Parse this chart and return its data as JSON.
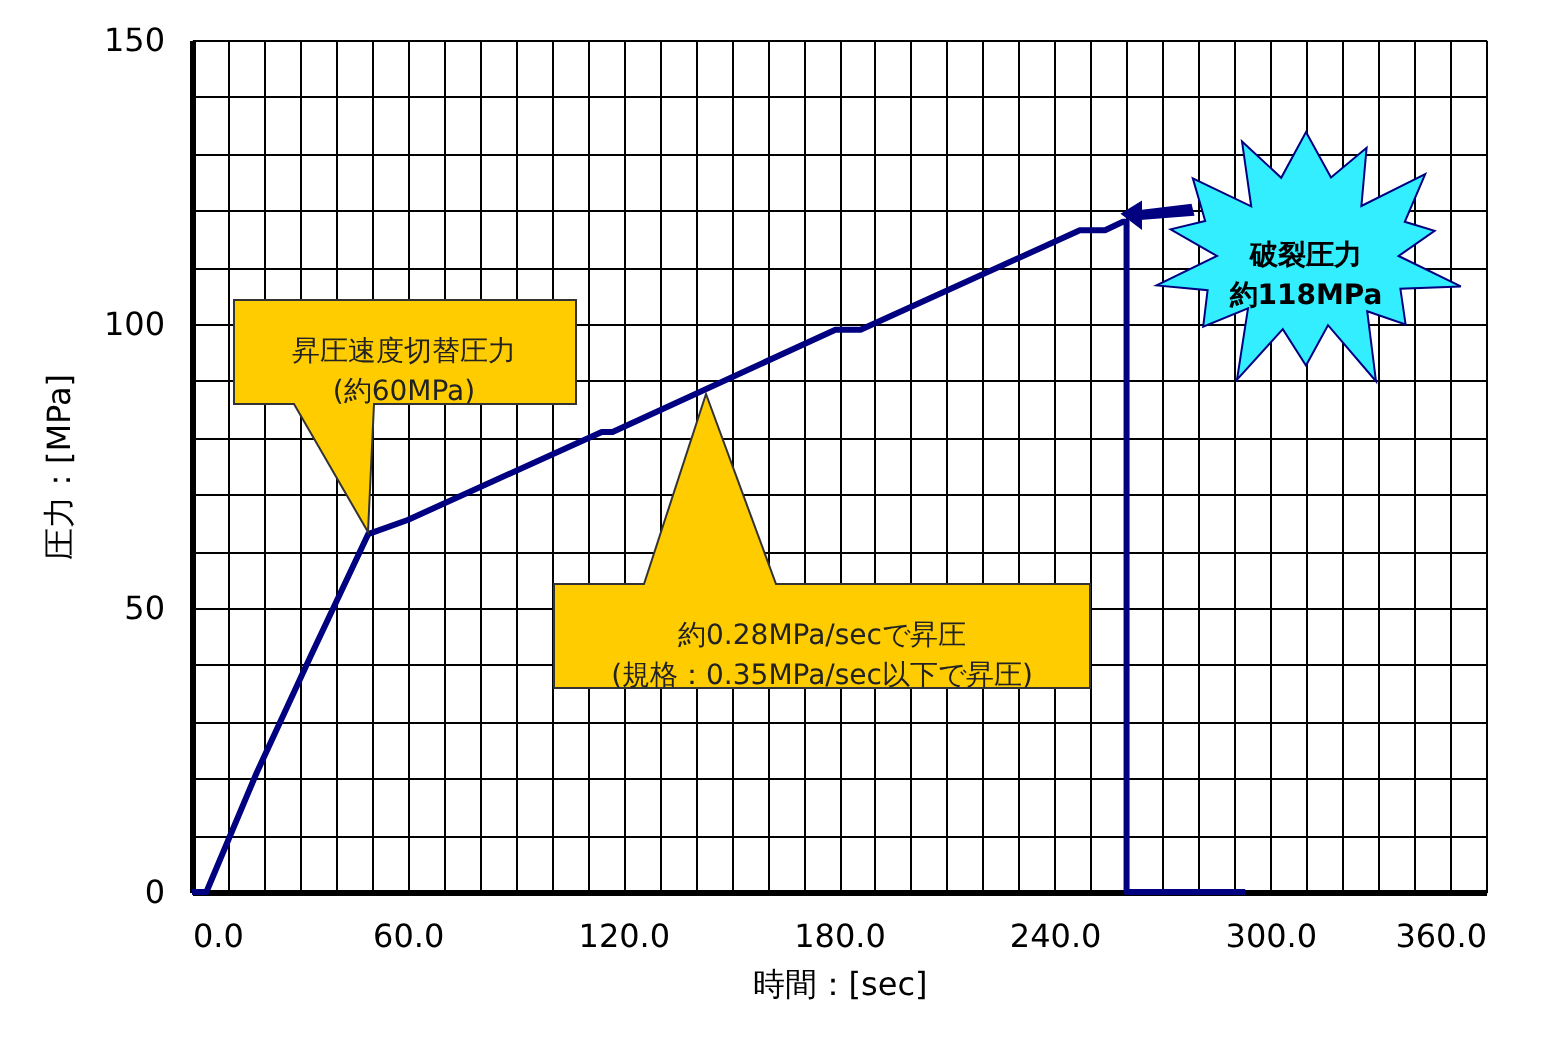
{
  "chart_data": {
    "type": "line",
    "xlabel": "時間：[sec]",
    "ylabel": "圧力：[MPa]",
    "x": [
      0,
      4,
      18,
      33,
      49,
      60,
      114,
      117,
      179,
      186,
      247,
      254,
      259,
      260,
      260,
      293
    ],
    "series": [
      {
        "color": "#000080",
        "values": [
          0,
          0,
          21,
          41.5,
          63,
          65.5,
          81,
          81,
          99,
          99,
          116.5,
          116.5,
          118,
          118,
          0,
          0
        ]
      }
    ],
    "xlim": [
      0,
      360
    ],
    "ylim": [
      0,
      150
    ],
    "xticks": [
      {
        "value": 0,
        "label": "0.0"
      },
      {
        "value": 10,
        "label": null
      },
      {
        "value": 20,
        "label": null
      },
      {
        "value": 30,
        "label": null
      },
      {
        "value": 40,
        "label": null
      },
      {
        "value": 50,
        "label": null
      },
      {
        "value": 60,
        "label": "60.0"
      },
      {
        "value": 70,
        "label": null
      },
      {
        "value": 80,
        "label": null
      },
      {
        "value": 90,
        "label": null
      },
      {
        "value": 100,
        "label": null
      },
      {
        "value": 110,
        "label": null
      },
      {
        "value": 120,
        "label": "120.0"
      },
      {
        "value": 130,
        "label": null
      },
      {
        "value": 140,
        "label": null
      },
      {
        "value": 150,
        "label": null
      },
      {
        "value": 160,
        "label": null
      },
      {
        "value": 170,
        "label": null
      },
      {
        "value": 180,
        "label": "180.0"
      },
      {
        "value": 190,
        "label": null
      },
      {
        "value": 200,
        "label": null
      },
      {
        "value": 210,
        "label": null
      },
      {
        "value": 220,
        "label": null
      },
      {
        "value": 230,
        "label": null
      },
      {
        "value": 240,
        "label": "240.0"
      },
      {
        "value": 250,
        "label": null
      },
      {
        "value": 260,
        "label": null
      },
      {
        "value": 270,
        "label": null
      },
      {
        "value": 280,
        "label": null
      },
      {
        "value": 290,
        "label": null
      },
      {
        "value": 300,
        "label": "300.0"
      },
      {
        "value": 310,
        "label": null
      },
      {
        "value": 320,
        "label": null
      },
      {
        "value": 330,
        "label": null
      },
      {
        "value": 340,
        "label": null
      },
      {
        "value": 350,
        "label": null
      },
      {
        "value": 360,
        "label": "360.0"
      }
    ],
    "yticks": [
      0,
      {
        "value": 10,
        "label": null
      },
      {
        "value": 20,
        "label": null
      },
      {
        "value": 30,
        "label": null
      },
      {
        "value": 40,
        "label": null
      },
      50,
      {
        "value": 60,
        "label": null
      },
      {
        "value": 70,
        "label": null
      },
      {
        "value": 80,
        "label": null
      },
      {
        "value": 90,
        "label": null
      },
      100,
      {
        "value": 110,
        "label": null
      },
      {
        "value": 120,
        "label": null
      },
      {
        "value": 130,
        "label": null
      },
      {
        "value": 140,
        "label": null
      },
      150
    ],
    "grid": true,
    "line_style": "solid",
    "marker": "none",
    "annotations": [
      "昇圧速度切替圧力\n(約60MPa)",
      "約0.28MPa/secで昇圧\n(規格：0.35MPa/sec以下で昇圧)",
      "破裂圧力約118MPa"
    ]
  }
}
